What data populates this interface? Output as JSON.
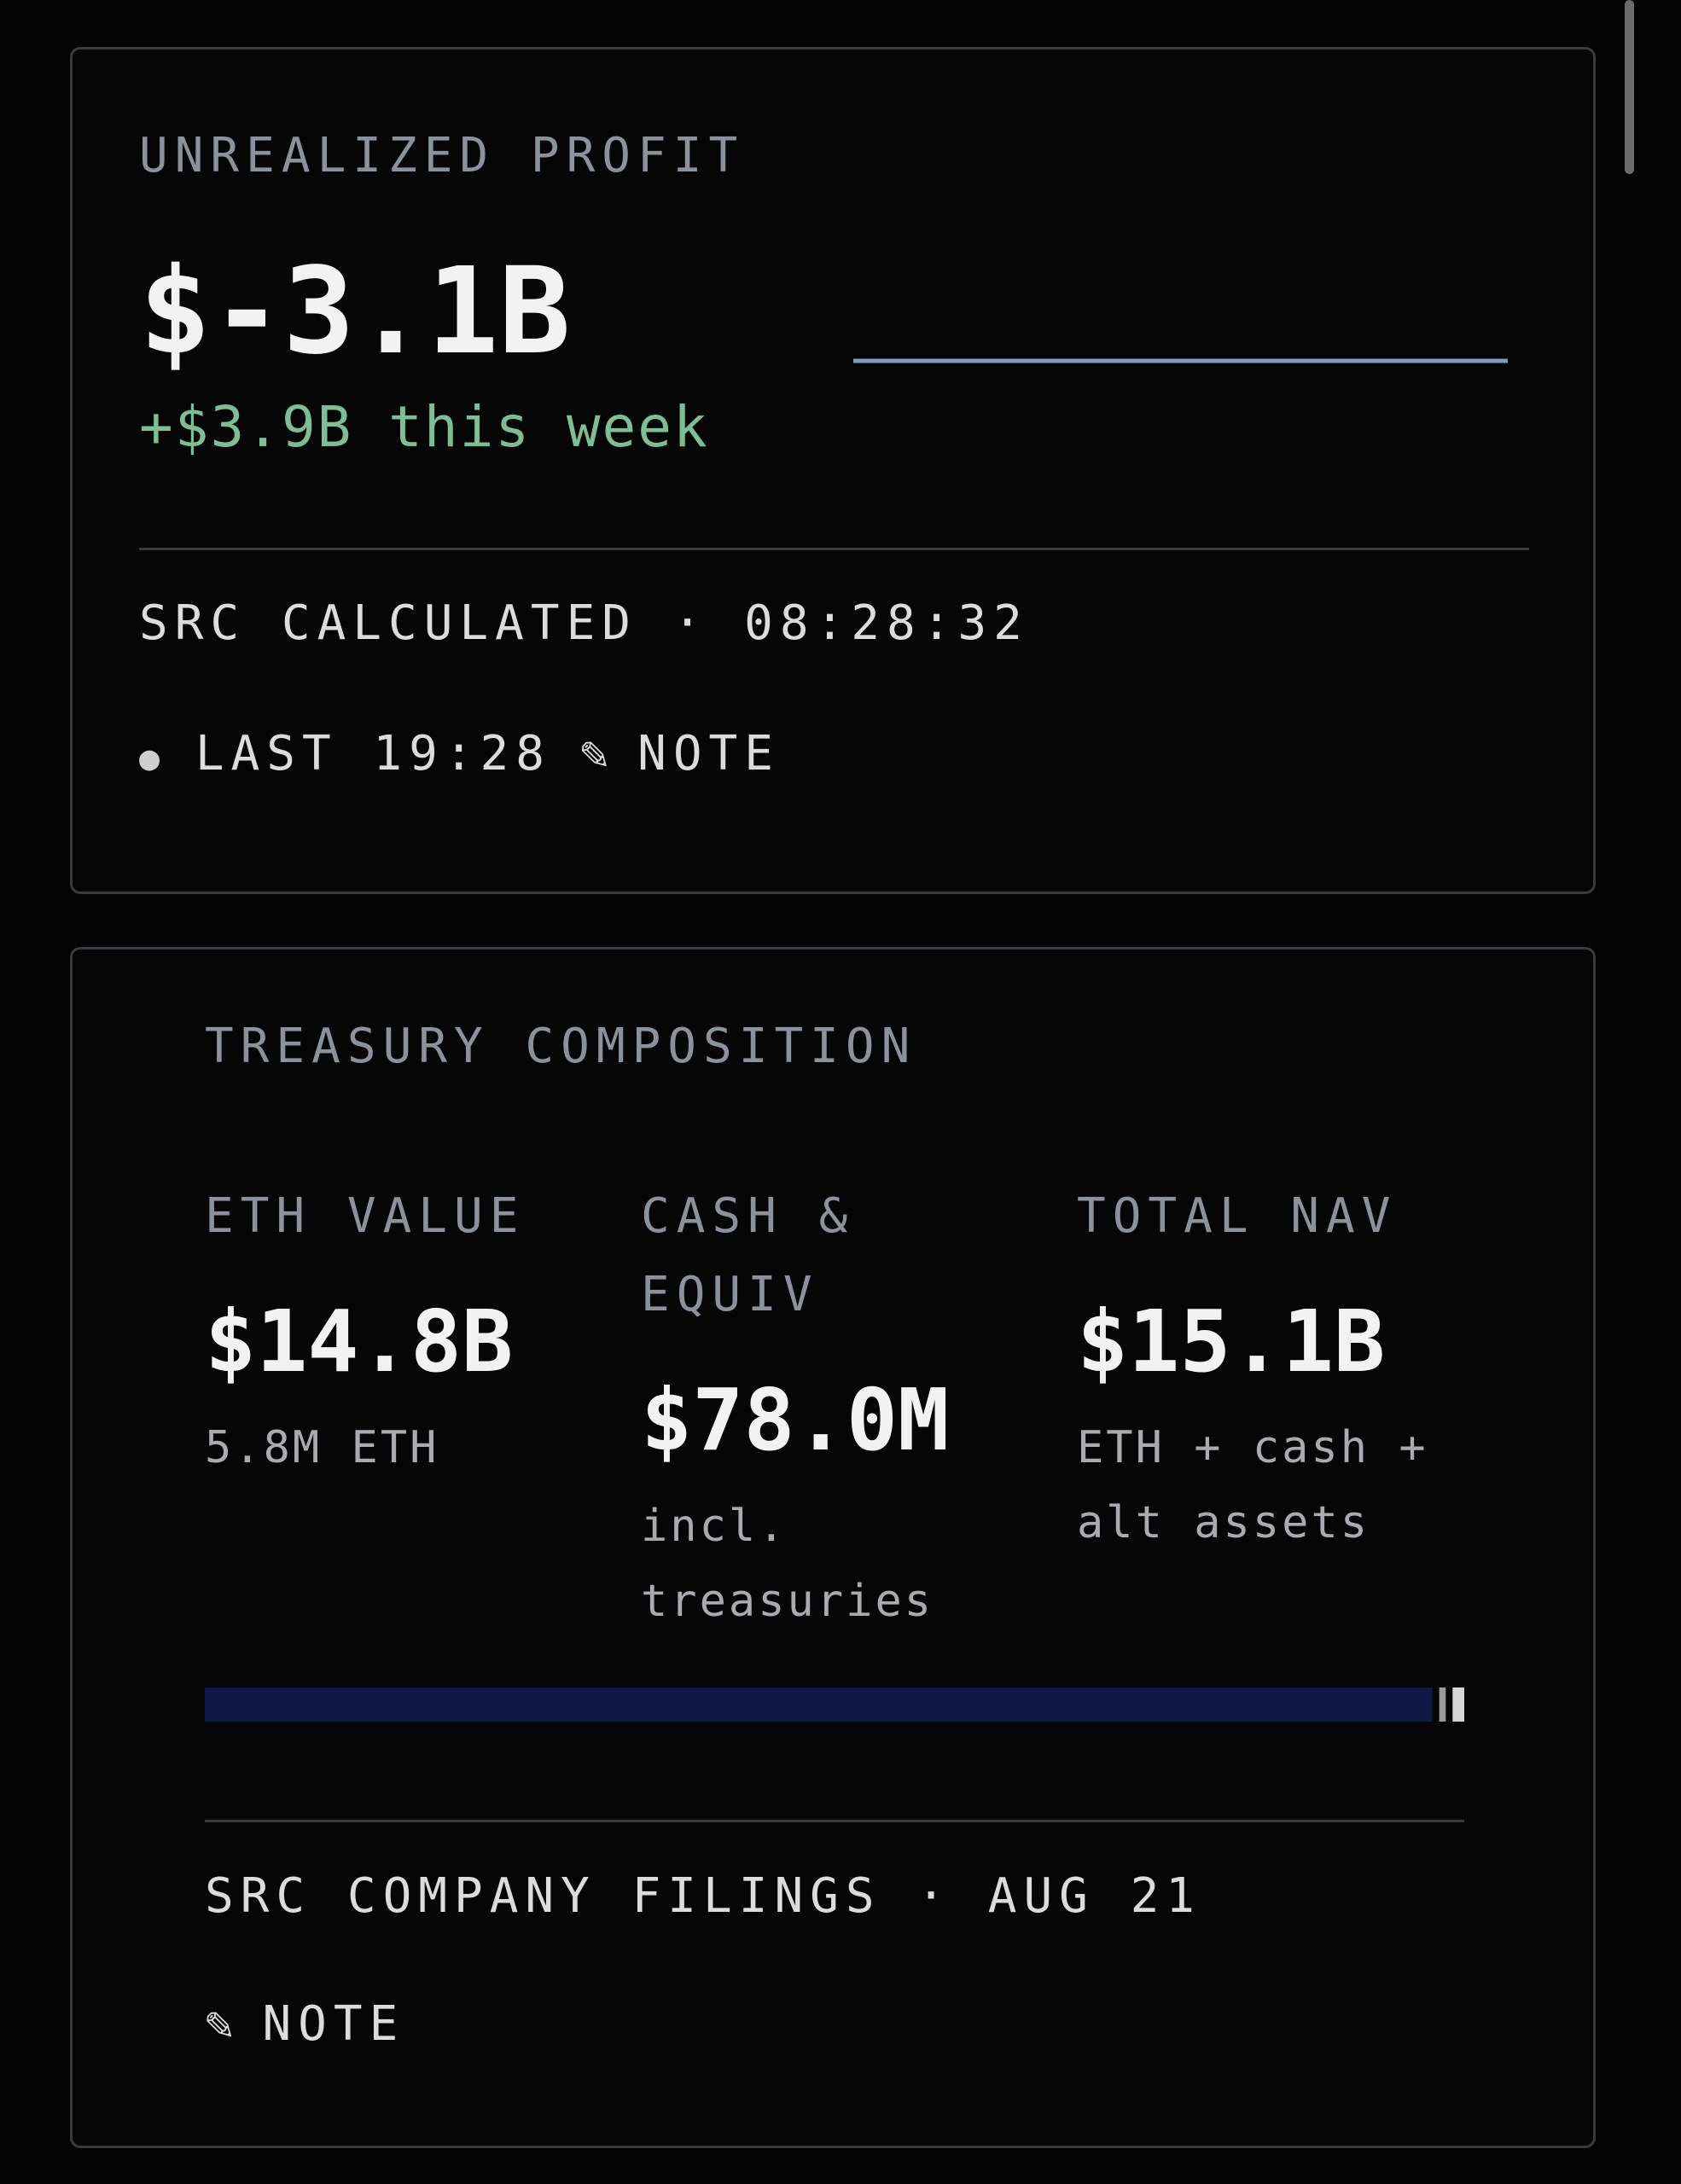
{
  "profit_card": {
    "label": "UNREALIZED PROFIT",
    "value": "$-3.1B",
    "change": "+$3.9B this week",
    "source": "SRC CALCULATED · 08:28:32",
    "last": "LAST 19:28",
    "note": "NOTE"
  },
  "treasury_card": {
    "title": "TREASURY COMPOSITION",
    "metrics": [
      {
        "label": "ETH VALUE",
        "value": {
          "value": 14800000000,
          "label": "$14.8B"
        },
        "sub": "5.8M ETH"
      },
      {
        "label": "CASH & EQUIV",
        "value": {
          "value": 78000000,
          "label": "$78.0M"
        },
        "sub": "incl. treasuries"
      },
      {
        "label": "TOTAL NAV",
        "value": {
          "value": 15100000000,
          "label": "$15.1B"
        },
        "sub": "ETH + cash + alt assets"
      }
    ],
    "source": "SRC COMPANY FILINGS · AUG 21",
    "note": "NOTE"
  }
}
